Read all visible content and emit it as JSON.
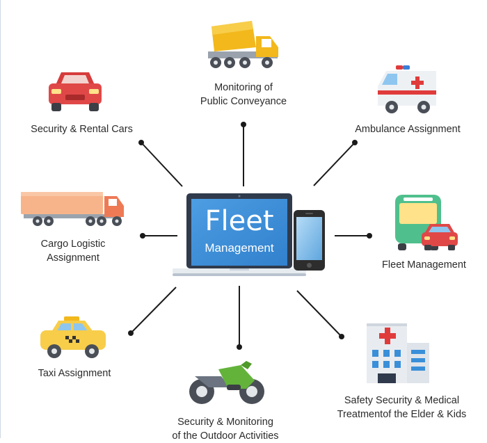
{
  "hub": {
    "title": "Fleet",
    "subtitle": "Management"
  },
  "nodes": {
    "public_conveyance": {
      "line1": "Monitoring of",
      "line2": "Public Conveyance"
    },
    "rental_cars": {
      "label": "Security & Rental Cars"
    },
    "ambulance": {
      "label": "Ambulance Assignment"
    },
    "cargo": {
      "line1": "Cargo Logistic",
      "line2": "Assignment"
    },
    "fleet": {
      "label": "Fleet Management"
    },
    "taxi": {
      "label": "Taxi Assignment"
    },
    "outdoor": {
      "line1": "Security & Monitoring",
      "line2": "of the Outdoor Activities"
    },
    "medical": {
      "line1": "Safety Security & Medical",
      "line2": "Treatmentof the Elder & Kids"
    }
  },
  "icons": [
    "cement-truck-icon",
    "red-car-icon",
    "ambulance-icon",
    "cargo-truck-icon",
    "bus-and-car-icon",
    "taxi-icon",
    "motorcycle-icon",
    "hospital-icon",
    "laptop-icon",
    "smartphone-icon"
  ],
  "colors": {
    "connector": "#1a1a1a",
    "screen": "#3a8fd9",
    "label": "#2b2b2b"
  }
}
